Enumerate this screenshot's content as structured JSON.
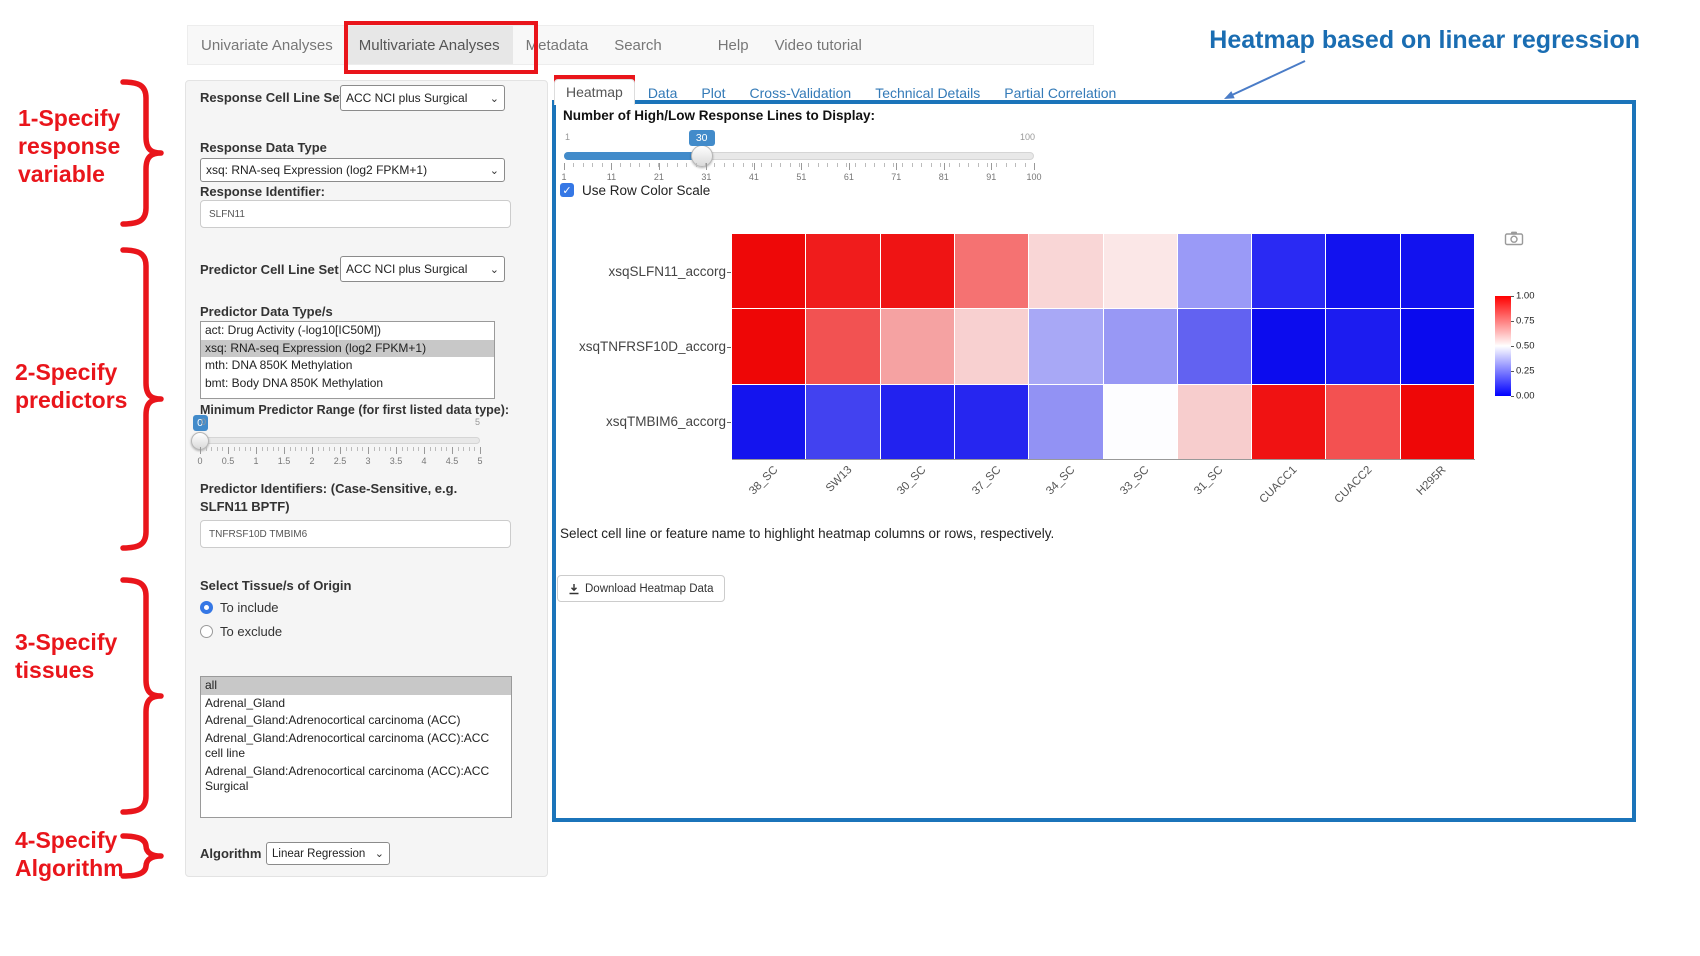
{
  "annotations": {
    "title": "Heatmap based on linear regression",
    "steps": [
      {
        "lines": [
          "1-Specify",
          "response",
          "variable"
        ]
      },
      {
        "lines": [
          "2-Specify",
          "predictors"
        ]
      },
      {
        "lines": [
          "3-Specify",
          "tissues"
        ]
      },
      {
        "lines": [
          "4-Specify",
          "Algorithm"
        ]
      }
    ]
  },
  "nav": {
    "items": [
      {
        "label": "Univariate Analyses",
        "active": false
      },
      {
        "label": "Multivariate Analyses",
        "active": true
      },
      {
        "label": "Metadata",
        "active": false
      },
      {
        "label": "Search",
        "active": false
      },
      {
        "label": "Help",
        "active": false
      },
      {
        "label": "Video tutorial",
        "active": false
      }
    ]
  },
  "sidebar": {
    "response_cell_line_set": {
      "label": "Response Cell Line Set",
      "value": "ACC NCI plus Surgical"
    },
    "response_data_type": {
      "label": "Response Data Type",
      "value": "xsq: RNA-seq Expression (log2 FPKM+1)"
    },
    "response_identifier": {
      "label": "Response Identifier:",
      "value": "SLFN11"
    },
    "predictor_cell_line_set": {
      "label": "Predictor Cell Line Set",
      "value": "ACC NCI plus Surgical"
    },
    "predictor_data_types": {
      "label": "Predictor Data Type/s",
      "options": [
        "act: Drug Activity (-log10[IC50M])",
        "xsq: RNA-seq Expression (log2 FPKM+1)",
        "mth: DNA 850K Methylation",
        "bmt: Body DNA 850K Methylation"
      ],
      "selected": "xsq: RNA-seq Expression (log2 FPKM+1)"
    },
    "min_predictor_range": {
      "label": "Minimum Predictor Range (for first listed data type):",
      "value": 0,
      "min": 0,
      "max": 5,
      "ticks": [
        0,
        0.5,
        1,
        1.5,
        2,
        2.5,
        3,
        3.5,
        4,
        4.5,
        5
      ]
    },
    "predictor_identifiers": {
      "label": "Predictor Identifiers: (Case-Sensitive, e.g. SLFN11 BPTF)",
      "value": "TNFRSF10D TMBIM6"
    },
    "tissue": {
      "label": "Select Tissue/s of Origin",
      "radios": [
        {
          "label": "To include",
          "selected": true
        },
        {
          "label": "To exclude",
          "selected": false
        }
      ],
      "options": [
        "all",
        "Adrenal_Gland",
        "Adrenal_Gland:Adrenocortical carcinoma (ACC)",
        "Adrenal_Gland:Adrenocortical carcinoma (ACC):ACC cell line",
        "Adrenal_Gland:Adrenocortical carcinoma (ACC):ACC Surgical"
      ],
      "selected": "all"
    },
    "algorithm": {
      "label": "Algorithm",
      "value": "Linear Regression"
    }
  },
  "tabs": {
    "items": [
      "Heatmap",
      "Data",
      "Plot",
      "Cross-Validation",
      "Technical Details",
      "Partial Correlation"
    ],
    "active": "Heatmap"
  },
  "main": {
    "lines_slider": {
      "label": "Number of High/Low Response Lines to Display:",
      "min": 1,
      "max": 100,
      "value": 30,
      "ticks": [
        1,
        11,
        21,
        31,
        41,
        51,
        61,
        71,
        81,
        91,
        100
      ]
    },
    "row_color_scale": {
      "label": "Use Row Color Scale",
      "checked": true
    },
    "hint": "Select cell line or feature name to highlight heatmap columns or rows, respectively.",
    "download_button": "Download Heatmap Data"
  },
  "chart_data": {
    "type": "heatmap",
    "title": "",
    "rows": [
      "xsqSLFN11_accorg",
      "xsqTNFRSF10D_accorg",
      "xsqTMBIM6_accorg"
    ],
    "columns": [
      "38_SC",
      "SW13",
      "30_SC",
      "37_SC",
      "34_SC",
      "33_SC",
      "31_SC",
      "CUACC1",
      "CUACC2",
      "H295R"
    ],
    "values_normalized": [
      [
        0.98,
        0.95,
        0.94,
        0.78,
        0.57,
        0.54,
        0.31,
        0.08,
        0.04,
        0.04
      ],
      [
        0.98,
        0.82,
        0.7,
        0.6,
        0.34,
        0.3,
        0.2,
        0.03,
        0.06,
        0.02
      ],
      [
        0.04,
        0.13,
        0.07,
        0.08,
        0.3,
        0.5,
        0.58,
        0.96,
        0.83,
        0.98
      ]
    ],
    "cell_colors": [
      [
        "#ee0808",
        "#f01c1c",
        "#ef1414",
        "#f57272",
        "#f9d6d6",
        "#fbe7e7",
        "#9a9af7",
        "#2a2af3",
        "#1212ef",
        "#1212ef"
      ],
      [
        "#ee0606",
        "#f25252",
        "#f5a2a2",
        "#f8d0d0",
        "#a8a8f6",
        "#9898f5",
        "#6262f1",
        "#0c0cee",
        "#1c1cf0",
        "#0a0aee"
      ],
      [
        "#1414ee",
        "#4242f0",
        "#2222ef",
        "#2626f0",
        "#9292f4",
        "#fdfdff",
        "#f7cdcd",
        "#f01212",
        "#f35151",
        "#ee0707"
      ]
    ],
    "colorbar": {
      "ticks": [
        "1.00",
        "0.75",
        "0.50",
        "0.25",
        "0.00"
      ],
      "gradient": [
        "#ff0000",
        "#ffffff",
        "#0000ff"
      ],
      "position": "right"
    },
    "grid": false
  }
}
